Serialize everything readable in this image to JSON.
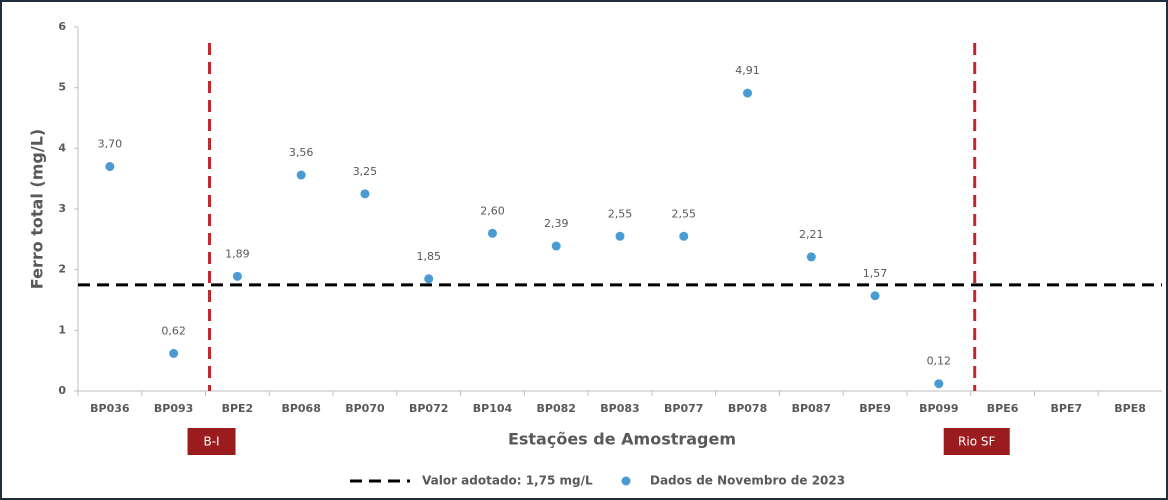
{
  "chart_data": {
    "type": "scatter",
    "x_label": "Estações de Amostragem",
    "y_label": "Ferro total (mg/L)",
    "categories": [
      "BP036",
      "BP093",
      "BPE2",
      "BP068",
      "BP070",
      "BP072",
      "BP104",
      "BP082",
      "BP083",
      "BP077",
      "BP078",
      "BP087",
      "BPE9",
      "BP099",
      "BPE6",
      "BPE7",
      "BPE8"
    ],
    "series": [
      {
        "name": "Dados de Novembro de 2023",
        "color": "#4a9bd4",
        "values": [
          3.7,
          0.62,
          1.89,
          3.56,
          3.25,
          1.85,
          2.6,
          2.39,
          2.55,
          2.55,
          4.91,
          2.21,
          1.57,
          0.12,
          null,
          null,
          null
        ],
        "value_labels": [
          "3,70",
          "0,62",
          "1,89",
          "3,56",
          "3,25",
          "1,85",
          "2,60",
          "2,39",
          "2,55",
          "2,55",
          "4,91",
          "2,21",
          "1,57",
          "0,12",
          null,
          null,
          null
        ]
      }
    ],
    "reference_line": {
      "value": 1.75,
      "label": "Valor adotado: 1,75 mg/L",
      "color": "#000000"
    },
    "dividers": [
      {
        "label": "B-I",
        "color": "#c0272d"
      },
      {
        "label": "Rio SF",
        "color": "#c0272d"
      }
    ],
    "ylim": [
      0,
      6
    ],
    "yticks": [
      0,
      1,
      2,
      3,
      4,
      5,
      6
    ],
    "legend": "bottom"
  }
}
